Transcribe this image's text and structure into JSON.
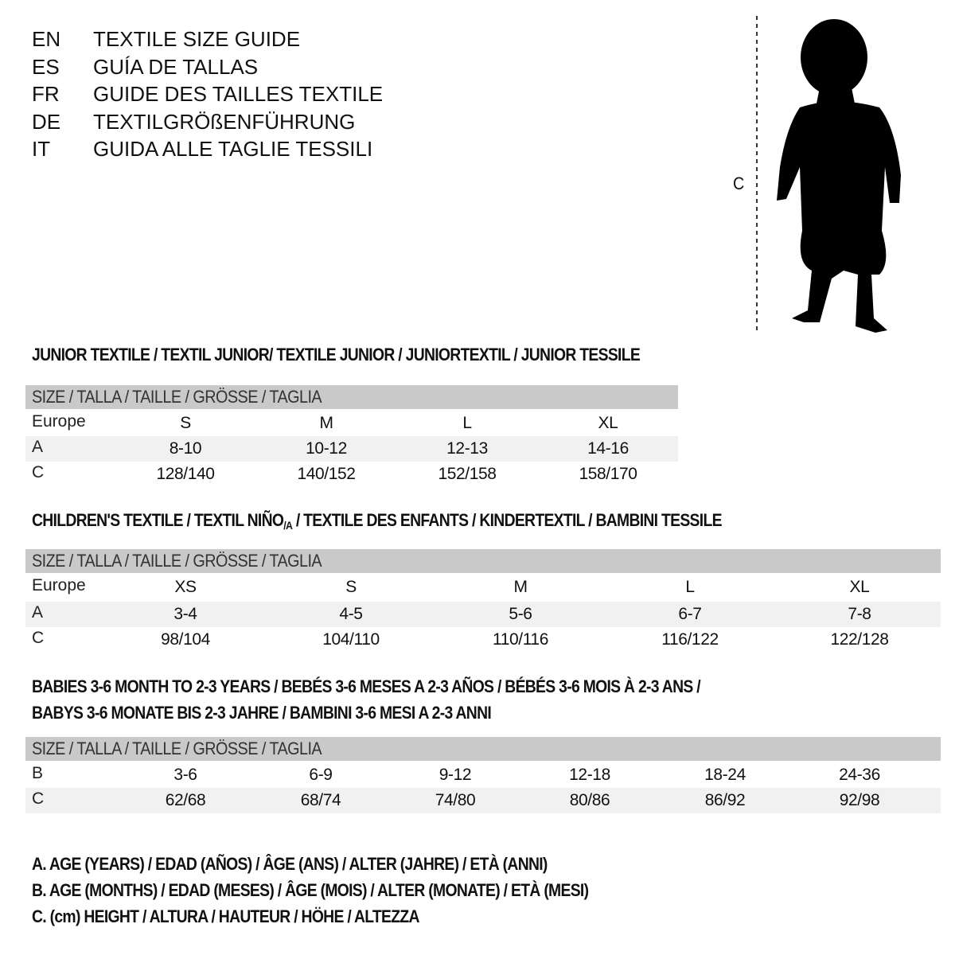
{
  "titles": [
    {
      "code": "EN",
      "text": "TEXTILE SIZE GUIDE"
    },
    {
      "code": "ES",
      "text": "GUÍA DE TALLAS"
    },
    {
      "code": "FR",
      "text": "GUIDE DES TAILLES TEXTILE"
    },
    {
      "code": "DE",
      "text": "TEXTILGRÖßENFÜHRUNG"
    },
    {
      "code": "IT",
      "text": "GUIDA ALLE TAGLIE TESSILI"
    }
  ],
  "figure": {
    "measure_label": "C"
  },
  "junior": {
    "title": "JUNIOR TEXTILE / TEXTIL JUNIOR/ TEXTILE JUNIOR / JUNIORTEXTIL / JUNIOR TESSILE",
    "header": "SIZE / TALLA / TAILLE / GRÖSSE / TAGLIA",
    "rows": [
      {
        "label": "Europe",
        "values": [
          "S",
          "M",
          "L",
          "XL"
        ]
      },
      {
        "label": "A",
        "values": [
          "8-10",
          "10-12",
          "12-13",
          "14-16"
        ]
      },
      {
        "label": "C",
        "values": [
          "128/140",
          "140/152",
          "152/158",
          "158/170"
        ]
      }
    ]
  },
  "children": {
    "title_a": "CHILDREN'S TEXTILE / TEXTIL NIÑO",
    "title_sub": "/A",
    "title_b": " / TEXTILE DES ENFANTS / KINDERTEXTIL / BAMBINI TESSILE",
    "header": "SIZE / TALLA / TAILLE / GRÖSSE / TAGLIA",
    "rows": [
      {
        "label": "Europe",
        "values": [
          "XS",
          "S",
          "M",
          "L",
          "XL"
        ]
      },
      {
        "label": "A",
        "values": [
          "3-4",
          "4-5",
          "5-6",
          "6-7",
          "7-8"
        ]
      },
      {
        "label": "C",
        "values": [
          "98/104",
          "104/110",
          "110/116",
          "116/122",
          "122/128"
        ]
      }
    ]
  },
  "babies": {
    "title_line1": "BABIES 3-6 MONTH TO 2-3 YEARS / BEBÉS 3-6 MESES A 2-3 AÑOS / BÉBÉS 3-6 MOIS À 2-3 ANS /",
    "title_line2": "BABYS 3-6 MONATE BIS 2-3 JAHRE / BAMBINI 3-6 MESI A 2-3 ANNI",
    "header": "SIZE / TALLA / TAILLE / GRÖSSE / TAGLIA",
    "rows": [
      {
        "label": "B",
        "values": [
          "3-6",
          "6-9",
          "9-12",
          "12-18",
          "18-24",
          "24-36"
        ]
      },
      {
        "label": "C",
        "values": [
          "62/68",
          "68/74",
          "74/80",
          "80/86",
          "86/92",
          "92/98"
        ]
      }
    ]
  },
  "legend": [
    "A. AGE (YEARS) / EDAD (AÑOS) / ÂGE (ANS) / ALTER (JAHRE) / ETÀ (ANNI)",
    "B. AGE (MONTHS) / EDAD (MESES) / ÂGE (MOIS) / ALTER (MONATE) / ETÀ (MESI)",
    "C. (cm) HEIGHT / ALTURA / HAUTEUR / HÖHE / ALTEZZA"
  ]
}
